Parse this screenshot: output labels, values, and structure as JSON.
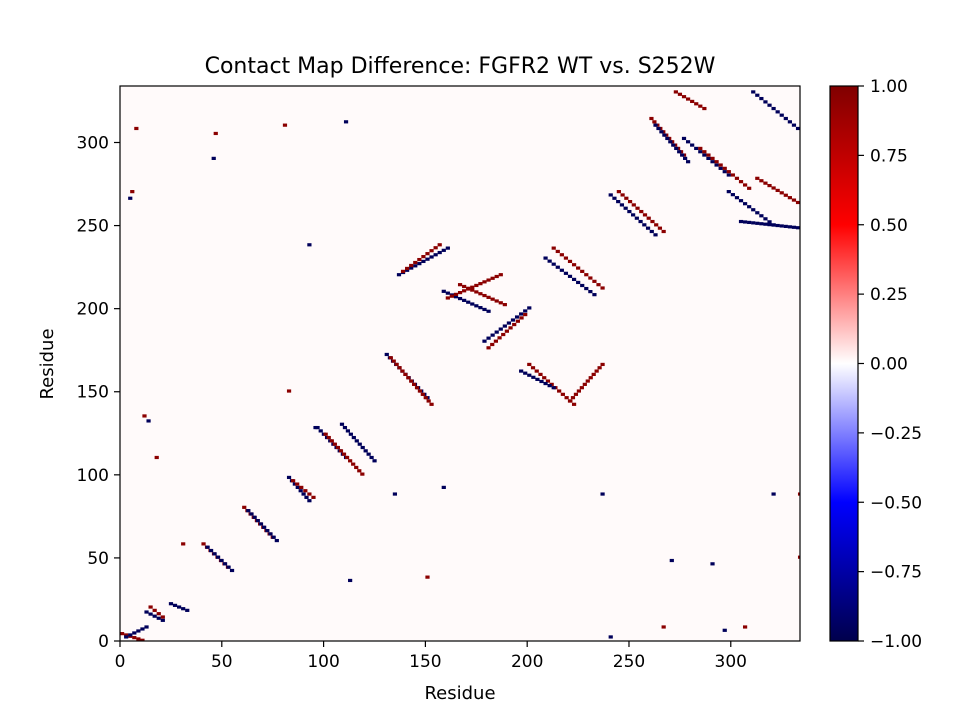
{
  "chart_data": {
    "type": "heatmap",
    "title": "Contact Map Difference: FGFR2 WT vs. S252W",
    "xlabel": "Residue",
    "ylabel": "Residue",
    "xlim": [
      0,
      334
    ],
    "ylim": [
      0,
      334
    ],
    "x_ticks": [
      "0",
      "50",
      "100",
      "150",
      "200",
      "250",
      "300"
    ],
    "x_tick_values": [
      0,
      50,
      100,
      150,
      200,
      250,
      300
    ],
    "y_ticks": [
      "0",
      "50",
      "100",
      "150",
      "200",
      "250",
      "300"
    ],
    "y_tick_values": [
      0,
      50,
      100,
      150,
      200,
      250,
      300
    ],
    "colorbar": {
      "colormap": "seismic",
      "range": [
        -1,
        1
      ],
      "ticks": [
        "1.00",
        "0.75",
        "0.50",
        "0.25",
        "0.00",
        "−0.25",
        "−0.50",
        "−0.75",
        "−1.00"
      ],
      "tick_values": [
        1,
        0.75,
        0.5,
        0.25,
        0,
        -0.25,
        -0.5,
        -0.75,
        -1
      ],
      "colors": [
        "#00004c",
        "#0000ff",
        "#ffffff",
        "#ff0000",
        "#800000"
      ]
    },
    "background_value": 0,
    "segments": [
      {
        "x0": 12,
        "y0": 17,
        "x1": 20,
        "y1": 12,
        "value": -1
      },
      {
        "x0": 14,
        "y0": 20,
        "x1": 20,
        "y1": 14,
        "value": 1
      },
      {
        "x0": 24,
        "y0": 22,
        "x1": 32,
        "y1": 18,
        "value": -1
      },
      {
        "x0": 40,
        "y0": 58,
        "x1": 52,
        "y1": 44,
        "value": 1
      },
      {
        "x0": 42,
        "y0": 56,
        "x1": 54,
        "y1": 42,
        "value": -1
      },
      {
        "x0": 60,
        "y0": 80,
        "x1": 74,
        "y1": 62,
        "value": 1
      },
      {
        "x0": 62,
        "y0": 78,
        "x1": 76,
        "y1": 60,
        "value": -1
      },
      {
        "x0": 82,
        "y0": 98,
        "x1": 92,
        "y1": 84,
        "value": -1
      },
      {
        "x0": 84,
        "y0": 96,
        "x1": 94,
        "y1": 86,
        "value": 1
      },
      {
        "x0": 96,
        "y0": 128,
        "x1": 110,
        "y1": 110,
        "value": -1
      },
      {
        "x0": 100,
        "y0": 124,
        "x1": 118,
        "y1": 100,
        "value": 1
      },
      {
        "x0": 108,
        "y0": 130,
        "x1": 124,
        "y1": 108,
        "value": -1
      },
      {
        "x0": 130,
        "y0": 172,
        "x1": 150,
        "y1": 146,
        "value": -1
      },
      {
        "x0": 132,
        "y0": 170,
        "x1": 152,
        "y1": 142,
        "value": 1
      },
      {
        "x0": 136,
        "y0": 220,
        "x1": 160,
        "y1": 236,
        "value": -1
      },
      {
        "x0": 138,
        "y0": 222,
        "x1": 156,
        "y1": 238,
        "value": 1
      },
      {
        "x0": 158,
        "y0": 210,
        "x1": 180,
        "y1": 198,
        "value": -1
      },
      {
        "x0": 160,
        "y0": 206,
        "x1": 186,
        "y1": 220,
        "value": 1
      },
      {
        "x0": 166,
        "y0": 214,
        "x1": 188,
        "y1": 202,
        "value": 1
      },
      {
        "x0": 178,
        "y0": 180,
        "x1": 200,
        "y1": 200,
        "value": -1
      },
      {
        "x0": 180,
        "y0": 176,
        "x1": 198,
        "y1": 196,
        "value": 1
      },
      {
        "x0": 200,
        "y0": 166,
        "x1": 222,
        "y1": 142,
        "value": 1
      },
      {
        "x0": 196,
        "y0": 162,
        "x1": 212,
        "y1": 152,
        "value": -1
      },
      {
        "x0": 212,
        "y0": 236,
        "x1": 236,
        "y1": 212,
        "value": 1
      },
      {
        "x0": 208,
        "y0": 230,
        "x1": 232,
        "y1": 208,
        "value": -1
      },
      {
        "x0": 220,
        "y0": 144,
        "x1": 236,
        "y1": 166,
        "value": 1
      },
      {
        "x0": 240,
        "y0": 268,
        "x1": 262,
        "y1": 244,
        "value": -1
      },
      {
        "x0": 244,
        "y0": 270,
        "x1": 266,
        "y1": 246,
        "value": 1
      },
      {
        "x0": 260,
        "y0": 314,
        "x1": 276,
        "y1": 292,
        "value": 1
      },
      {
        "x0": 262,
        "y0": 310,
        "x1": 278,
        "y1": 288,
        "value": -1
      },
      {
        "x0": 272,
        "y0": 330,
        "x1": 286,
        "y1": 320,
        "value": 1
      },
      {
        "x0": 276,
        "y0": 302,
        "x1": 298,
        "y1": 280,
        "value": -1
      },
      {
        "x0": 284,
        "y0": 296,
        "x1": 308,
        "y1": 272,
        "value": 1
      },
      {
        "x0": 298,
        "y0": 270,
        "x1": 320,
        "y1": 250,
        "value": -1
      },
      {
        "x0": 310,
        "y0": 330,
        "x1": 334,
        "y1": 306,
        "value": -1
      },
      {
        "x0": 312,
        "y0": 278,
        "x1": 334,
        "y1": 262,
        "value": 1
      },
      {
        "x0": 304,
        "y0": 252,
        "x1": 334,
        "y1": 248,
        "value": -1
      },
      {
        "x0": 0,
        "y0": 4,
        "x1": 10,
        "y1": 0,
        "value": 1
      },
      {
        "x0": 2,
        "y0": 2,
        "x1": 12,
        "y1": 8,
        "value": -1
      }
    ],
    "points": [
      {
        "x": 45,
        "y": 290,
        "value": -1
      },
      {
        "x": 46,
        "y": 305,
        "value": 1
      },
      {
        "x": 7,
        "y": 308,
        "value": 1
      },
      {
        "x": 5,
        "y": 270,
        "value": 1
      },
      {
        "x": 4,
        "y": 266,
        "value": -1
      },
      {
        "x": 11,
        "y": 135,
        "value": 1
      },
      {
        "x": 13,
        "y": 132,
        "value": -1
      },
      {
        "x": 17,
        "y": 110,
        "value": 1
      },
      {
        "x": 30,
        "y": 58,
        "value": 1
      },
      {
        "x": 95,
        "y": 128,
        "value": -1
      },
      {
        "x": 158,
        "y": 92,
        "value": -1
      },
      {
        "x": 134,
        "y": 88,
        "value": -1
      },
      {
        "x": 236,
        "y": 88,
        "value": -1
      },
      {
        "x": 270,
        "y": 48,
        "value": -1
      },
      {
        "x": 290,
        "y": 46,
        "value": -1
      },
      {
        "x": 320,
        "y": 88,
        "value": -1
      },
      {
        "x": 333,
        "y": 88,
        "value": 1
      },
      {
        "x": 333,
        "y": 50,
        "value": 1
      },
      {
        "x": 240,
        "y": 2,
        "value": -1
      },
      {
        "x": 266,
        "y": 8,
        "value": 1
      },
      {
        "x": 306,
        "y": 8,
        "value": 1
      },
      {
        "x": 296,
        "y": 6,
        "value": -1
      },
      {
        "x": 82,
        "y": 150,
        "value": 1
      },
      {
        "x": 92,
        "y": 238,
        "value": -1
      },
      {
        "x": 150,
        "y": 38,
        "value": 1
      },
      {
        "x": 112,
        "y": 36,
        "value": -1
      },
      {
        "x": 80,
        "y": 310,
        "value": 1
      },
      {
        "x": 110,
        "y": 312,
        "value": -1
      }
    ]
  }
}
